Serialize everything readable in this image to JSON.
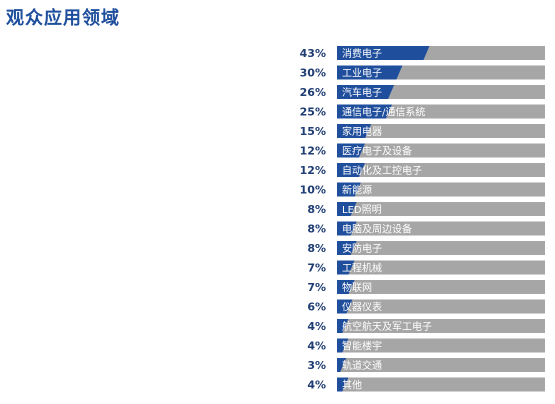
{
  "page_title": "观众应用领域",
  "chart_data": {
    "type": "bar",
    "orientation": "horizontal",
    "title": "观众应用领域",
    "categories": [
      "消费电子",
      "工业电子",
      "汽车电子",
      "通信电子/通信系统",
      "家用电器",
      "医疗电子及设备",
      "自动化及工控电子",
      "新能源",
      "LED照明",
      "电脑及周边设备",
      "安防电子",
      "工程机械",
      "物联网",
      "仪器仪表",
      "航空航天及军工电子",
      "智能楼宇",
      "轨道交通",
      "其他"
    ],
    "values": [
      43,
      30,
      26,
      25,
      15,
      12,
      12,
      10,
      8,
      8,
      8,
      7,
      7,
      6,
      4,
      4,
      3,
      4
    ],
    "value_labels": [
      "43%",
      "30%",
      "26%",
      "25%",
      "15%",
      "12%",
      "12%",
      "10%",
      "8%",
      "8%",
      "8%",
      "7%",
      "7%",
      "6%",
      "4%",
      "4%",
      "3%",
      "4%"
    ],
    "xlim": [
      0,
      100
    ],
    "grid": false,
    "legend": "none",
    "colors": {
      "fill": "#1f4e9c",
      "track": "#a6a6a6",
      "label": "#1f3d73"
    }
  }
}
